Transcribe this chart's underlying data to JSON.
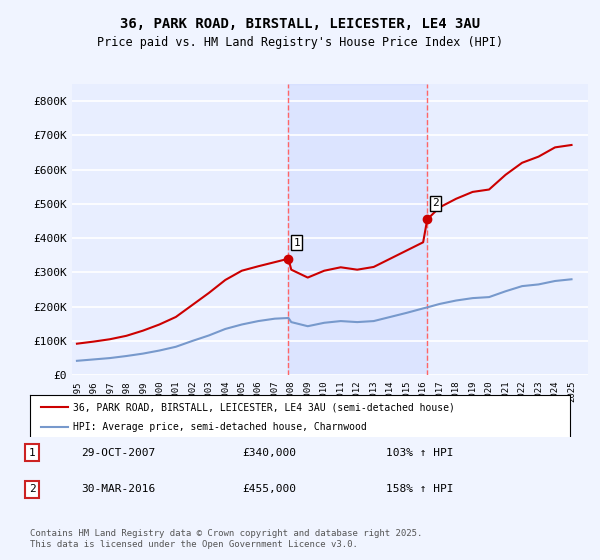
{
  "title": "36, PARK ROAD, BIRSTALL, LEICESTER, LE4 3AU",
  "subtitle": "Price paid vs. HM Land Registry's House Price Index (HPI)",
  "ylabel_prefix": "£",
  "yticks": [
    0,
    100000,
    200000,
    300000,
    400000,
    500000,
    600000,
    700000,
    800000
  ],
  "ytick_labels": [
    "£0",
    "£100K",
    "£200K",
    "£300K",
    "£400K",
    "£500K",
    "£600K",
    "£700K",
    "£800K"
  ],
  "xlim_start": 1995,
  "xlim_end": 2026,
  "ylim_min": 0,
  "ylim_max": 850000,
  "background_color": "#f0f4ff",
  "plot_bg_color": "#e8eeff",
  "grid_color": "#ffffff",
  "red_line_color": "#cc0000",
  "blue_line_color": "#7799cc",
  "vline_color": "#ff6666",
  "marker1_x": 2007.83,
  "marker1_y": 340000,
  "marker2_x": 2016.25,
  "marker2_y": 455000,
  "legend_label_red": "36, PARK ROAD, BIRSTALL, LEICESTER, LE4 3AU (semi-detached house)",
  "legend_label_blue": "HPI: Average price, semi-detached house, Charnwood",
  "annotation1_label": "1",
  "annotation2_label": "2",
  "table_row1": [
    "1",
    "29-OCT-2007",
    "£340,000",
    "103% ↑ HPI"
  ],
  "table_row2": [
    "2",
    "30-MAR-2016",
    "£455,000",
    "158% ↑ HPI"
  ],
  "footer": "Contains HM Land Registry data © Crown copyright and database right 2025.\nThis data is licensed under the Open Government Licence v3.0.",
  "hpi_years": [
    1995,
    1996,
    1997,
    1998,
    1999,
    2000,
    2001,
    2002,
    2003,
    2004,
    2005,
    2006,
    2007,
    2007.83,
    2008,
    2009,
    2010,
    2011,
    2012,
    2013,
    2014,
    2015,
    2016,
    2016.25,
    2017,
    2018,
    2019,
    2020,
    2021,
    2022,
    2023,
    2024,
    2025
  ],
  "hpi_values": [
    42000,
    46000,
    50000,
    56000,
    63000,
    72000,
    83000,
    100000,
    116000,
    135000,
    148000,
    158000,
    165000,
    167000,
    155000,
    143000,
    153000,
    158000,
    155000,
    158000,
    170000,
    182000,
    195000,
    198000,
    208000,
    218000,
    225000,
    228000,
    245000,
    260000,
    265000,
    275000,
    280000
  ],
  "price_years": [
    1995,
    1996,
    1997,
    1998,
    1999,
    2000,
    2001,
    2002,
    2003,
    2004,
    2005,
    2006,
    2007,
    2007.83,
    2008,
    2009,
    2010,
    2011,
    2012,
    2013,
    2014,
    2015,
    2016,
    2016.25,
    2017,
    2018,
    2019,
    2020,
    2021,
    2022,
    2023,
    2024,
    2025
  ],
  "price_values": [
    92000,
    98000,
    105000,
    115000,
    130000,
    148000,
    170000,
    205000,
    240000,
    278000,
    305000,
    318000,
    330000,
    340000,
    308000,
    285000,
    305000,
    315000,
    308000,
    316000,
    340000,
    364000,
    388000,
    455000,
    490000,
    515000,
    535000,
    542000,
    585000,
    620000,
    638000,
    665000,
    672000
  ]
}
